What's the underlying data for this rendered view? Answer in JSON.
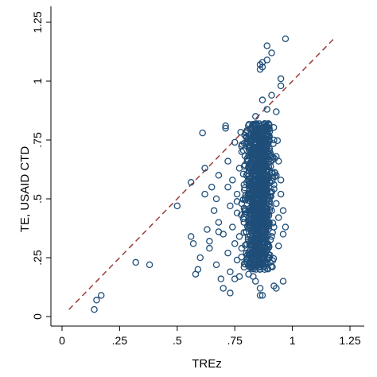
{
  "chart_data": {
    "type": "scatter",
    "xlabel": "TREz",
    "ylabel": "TE, USAID CTD",
    "xlim": [
      0,
      1.25
    ],
    "ylim": [
      0,
      1.25
    ],
    "x_ticks": [
      {
        "value": 0,
        "label": "0"
      },
      {
        "value": 0.25,
        "label": ".25"
      },
      {
        "value": 0.5,
        "label": ".5"
      },
      {
        "value": 0.75,
        "label": ".75"
      },
      {
        "value": 1,
        "label": "1"
      },
      {
        "value": 1.25,
        "label": "1.25"
      }
    ],
    "y_ticks": [
      {
        "value": 0,
        "label": "0"
      },
      {
        "value": 0.25,
        "label": ".25"
      },
      {
        "value": 0.5,
        "label": ".5"
      },
      {
        "value": 0.75,
        "label": ".75"
      },
      {
        "value": 1,
        "label": "1"
      },
      {
        "value": 1.25,
        "label": "1.25"
      }
    ],
    "grid": false,
    "marker": "hollow-circle",
    "marker_color": "#1f4e79",
    "reference_line": {
      "style": "dashed",
      "color": "#9b3b3b",
      "x": [
        0.03,
        1.18
      ],
      "y": [
        0.03,
        1.18
      ]
    },
    "points": [
      [
        0.14,
        0.03
      ],
      [
        0.15,
        0.07
      ],
      [
        0.17,
        0.09
      ],
      [
        0.32,
        0.23
      ],
      [
        0.38,
        0.22
      ],
      [
        0.5,
        0.47
      ],
      [
        0.56,
        0.57
      ],
      [
        0.56,
        0.34
      ],
      [
        0.57,
        0.31
      ],
      [
        0.58,
        0.18
      ],
      [
        0.59,
        0.2
      ],
      [
        0.6,
        0.25
      ],
      [
        0.61,
        0.78
      ],
      [
        0.62,
        0.63
      ],
      [
        0.62,
        0.52
      ],
      [
        0.63,
        0.37
      ],
      [
        0.64,
        0.29
      ],
      [
        0.65,
        0.55
      ],
      [
        0.66,
        0.45
      ],
      [
        0.67,
        0.5
      ],
      [
        0.67,
        0.22
      ],
      [
        0.68,
        0.6
      ],
      [
        0.68,
        0.4
      ],
      [
        0.69,
        0.16
      ],
      [
        0.7,
        0.12
      ],
      [
        0.7,
        0.35
      ],
      [
        0.71,
        0.8
      ],
      [
        0.71,
        0.81
      ],
      [
        0.72,
        0.66
      ],
      [
        0.72,
        0.55
      ],
      [
        0.72,
        0.27
      ],
      [
        0.73,
        0.47
      ],
      [
        0.73,
        0.19
      ],
      [
        0.74,
        0.38
      ],
      [
        0.74,
        0.58
      ],
      [
        0.75,
        0.31
      ],
      [
        0.75,
        0.74
      ],
      [
        0.76,
        0.52
      ],
      [
        0.76,
        0.44
      ],
      [
        0.76,
        0.24
      ],
      [
        0.77,
        0.63
      ],
      [
        0.77,
        0.34
      ],
      [
        0.77,
        0.17
      ],
      [
        0.78,
        0.48
      ],
      [
        0.78,
        0.7
      ],
      [
        0.78,
        0.29
      ],
      [
        0.79,
        0.4
      ],
      [
        0.79,
        0.56
      ],
      [
        0.79,
        0.21
      ],
      [
        0.8,
        0.6
      ],
      [
        0.8,
        0.36
      ],
      [
        0.8,
        0.76
      ],
      [
        0.8,
        0.27
      ],
      [
        0.81,
        0.45
      ],
      [
        0.81,
        0.52
      ],
      [
        0.81,
        0.18
      ],
      [
        0.82,
        0.65
      ],
      [
        0.82,
        0.33
      ],
      [
        0.82,
        0.42
      ],
      [
        0.82,
        0.8
      ],
      [
        0.83,
        0.49
      ],
      [
        0.83,
        0.58
      ],
      [
        0.83,
        0.25
      ],
      [
        0.83,
        0.7
      ],
      [
        0.84,
        0.38
      ],
      [
        0.84,
        0.53
      ],
      [
        0.84,
        0.85
      ],
      [
        0.84,
        0.15
      ],
      [
        0.84,
        0.3
      ],
      [
        0.85,
        0.62
      ],
      [
        0.85,
        0.45
      ],
      [
        0.85,
        0.77
      ],
      [
        0.85,
        0.22
      ],
      [
        0.85,
        0.55
      ],
      [
        0.86,
        1.05
      ],
      [
        0.86,
        1.07
      ],
      [
        0.86,
        0.4
      ],
      [
        0.86,
        0.68
      ],
      [
        0.86,
        0.33
      ],
      [
        0.86,
        0.12
      ],
      [
        0.87,
        1.08
      ],
      [
        0.87,
        1.06
      ],
      [
        0.87,
        0.5
      ],
      [
        0.87,
        0.72
      ],
      [
        0.87,
        0.28
      ],
      [
        0.87,
        0.6
      ],
      [
        0.87,
        0.92
      ],
      [
        0.88,
        0.43
      ],
      [
        0.88,
        0.57
      ],
      [
        0.88,
        0.35
      ],
      [
        0.88,
        0.82
      ],
      [
        0.88,
        0.2
      ],
      [
        0.88,
        0.65
      ],
      [
        0.89,
        1.15
      ],
      [
        0.89,
        1.09
      ],
      [
        0.89,
        0.48
      ],
      [
        0.89,
        0.74
      ],
      [
        0.89,
        0.3
      ],
      [
        0.89,
        0.54
      ],
      [
        0.89,
        0.88
      ],
      [
        0.9,
        0.4
      ],
      [
        0.9,
        0.62
      ],
      [
        0.9,
        0.25
      ],
      [
        0.9,
        0.8
      ],
      [
        0.9,
        0.5
      ],
      [
        0.91,
        1.12
      ],
      [
        0.91,
        0.45
      ],
      [
        0.91,
        0.68
      ],
      [
        0.91,
        0.34
      ],
      [
        0.91,
        0.94
      ],
      [
        0.92,
        0.56
      ],
      [
        0.92,
        0.38
      ],
      [
        0.92,
        0.75
      ],
      [
        0.92,
        0.13
      ],
      [
        0.93,
        0.48
      ],
      [
        0.93,
        0.6
      ],
      [
        0.93,
        0.12
      ],
      [
        0.93,
        0.87
      ],
      [
        0.94,
        0.42
      ],
      [
        0.94,
        0.66
      ],
      [
        0.94,
        0.3
      ],
      [
        0.95,
        0.98
      ],
      [
        0.95,
        1.01
      ],
      [
        0.95,
        0.52
      ],
      [
        0.95,
        0.58
      ],
      [
        0.96,
        0.35
      ],
      [
        0.96,
        0.15
      ],
      [
        0.96,
        0.45
      ],
      [
        0.97,
        1.18
      ],
      [
        0.93,
        0.68
      ],
      [
        0.97,
        0.38
      ],
      [
        0.86,
        0.09
      ],
      [
        0.87,
        0.09
      ],
      [
        0.83,
        0.17
      ],
      [
        0.75,
        0.16
      ],
      [
        0.73,
        0.1
      ],
      [
        0.68,
        0.36
      ],
      [
        0.64,
        0.32
      ]
    ]
  }
}
